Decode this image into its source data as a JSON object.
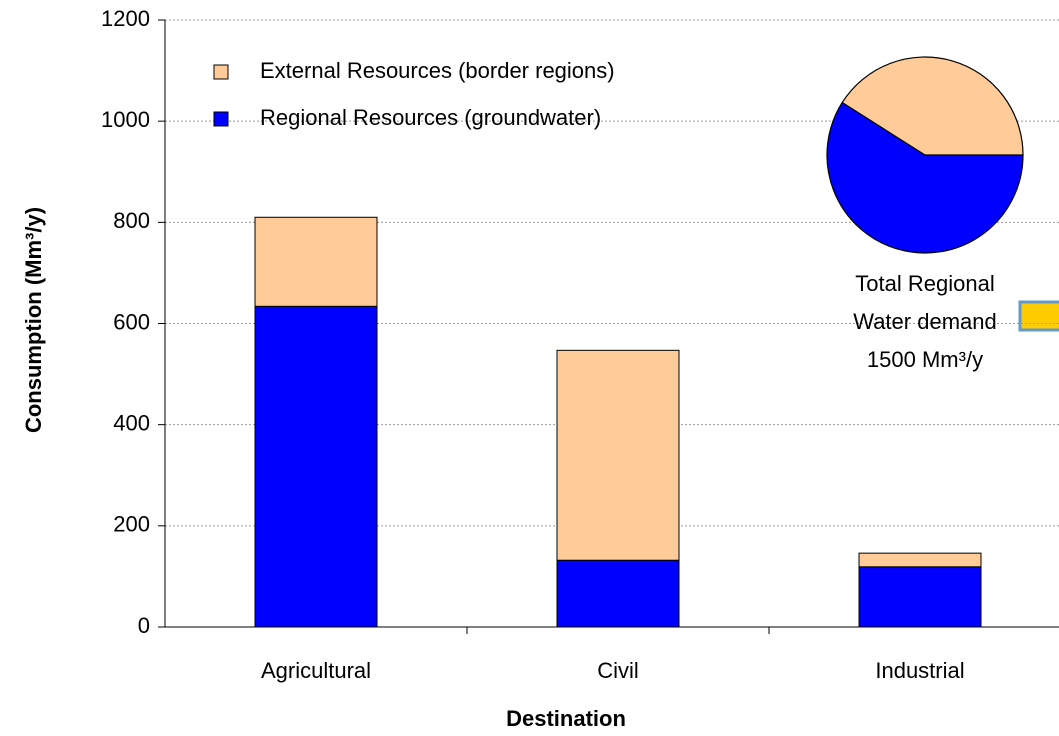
{
  "chart_data": {
    "type": "bar",
    "stacked": true,
    "x_label": "Destination",
    "y_label": "Consumption (Mm³/y)",
    "categories": [
      "Agricultural",
      "Civil",
      "Industrial"
    ],
    "series": [
      {
        "name": "Regional Resources (groundwater)",
        "color": "#0000ff",
        "values": [
          634,
          132,
          119
        ]
      },
      {
        "name": "External Resources (border regions)",
        "color": "#ffcc99",
        "values": [
          176,
          415,
          27
        ]
      }
    ],
    "ylim": [
      0,
      1200
    ],
    "yticks": [
      0,
      200,
      400,
      600,
      800,
      1000,
      1200
    ],
    "grid": true,
    "legend": "upper left",
    "inset": {
      "type": "pie",
      "labels": [
        "Regional Resources (groundwater)",
        "External Resources (border regions)"
      ],
      "values": [
        59,
        41
      ],
      "colors": [
        "#0000ff",
        "#ffcc99"
      ],
      "caption": [
        "Total Regional",
        "Water demand",
        "1500 Mm³/y"
      ]
    }
  }
}
